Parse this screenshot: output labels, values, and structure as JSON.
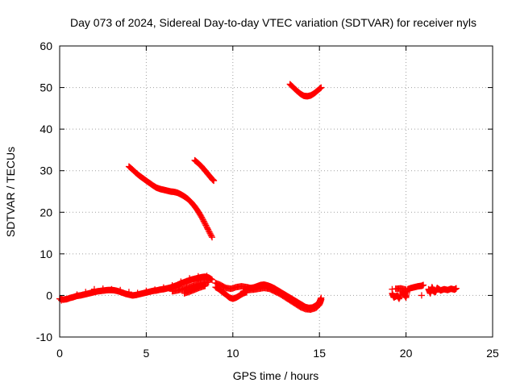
{
  "chart_data": {
    "type": "scatter",
    "title": "Day 073 of 2024, Sidereal Day-to-day VTEC variation (SDTVAR) for receiver nyls",
    "xlabel": "GPS time / hours",
    "ylabel": "SDTVAR / TECUs",
    "xlim": [
      0,
      25
    ],
    "ylim": [
      -10,
      60
    ],
    "x_ticks": [
      "0",
      "5",
      "10",
      "15",
      "20",
      "25"
    ],
    "y_ticks": [
      "-10",
      "0",
      "10",
      "20",
      "30",
      "40",
      "50",
      "60"
    ],
    "grid": true,
    "marker": "plus",
    "color": "#ff0000",
    "series": [
      {
        "points": [
          [
            0.0,
            -0.8
          ],
          [
            0.2,
            -1.0
          ],
          [
            0.4,
            -0.9
          ],
          [
            0.6,
            -0.6
          ],
          [
            0.8,
            -0.4
          ],
          [
            1.0,
            -0.1
          ],
          [
            1.2,
            0.0
          ],
          [
            1.4,
            0.2
          ],
          [
            1.6,
            0.4
          ],
          [
            1.8,
            0.6
          ],
          [
            2.0,
            0.8
          ],
          [
            2.2,
            1.0
          ],
          [
            2.4,
            1.1
          ],
          [
            2.6,
            1.2
          ],
          [
            2.8,
            1.3
          ],
          [
            3.0,
            1.3
          ],
          [
            3.2,
            1.2
          ],
          [
            3.4,
            1.0
          ],
          [
            3.6,
            0.7
          ],
          [
            3.8,
            0.4
          ],
          [
            4.0,
            0.2
          ],
          [
            4.2,
            0.0
          ],
          [
            4.4,
            0.1
          ],
          [
            4.6,
            0.3
          ],
          [
            4.8,
            0.5
          ],
          [
            5.0,
            0.7
          ],
          [
            5.2,
            0.9
          ],
          [
            5.4,
            1.1
          ],
          [
            5.6,
            1.2
          ],
          [
            5.8,
            1.4
          ],
          [
            6.0,
            1.5
          ],
          [
            6.2,
            1.7
          ],
          [
            6.4,
            1.9
          ],
          [
            6.6,
            2.2
          ],
          [
            6.8,
            2.5
          ],
          [
            7.0,
            2.9
          ],
          [
            7.2,
            3.2
          ],
          [
            7.4,
            3.5
          ],
          [
            7.6,
            3.8
          ],
          [
            7.8,
            4.0
          ],
          [
            8.0,
            4.2
          ],
          [
            8.2,
            4.4
          ],
          [
            8.4,
            4.5
          ],
          [
            8.6,
            4.3
          ],
          [
            8.8,
            3.8
          ]
        ]
      },
      {
        "points": [
          [
            0.1,
            -1.2
          ],
          [
            0.5,
            -0.8
          ],
          [
            1.0,
            0.2
          ],
          [
            1.5,
            0.8
          ],
          [
            2.0,
            1.5
          ],
          [
            2.5,
            1.6
          ],
          [
            3.0,
            1.5
          ],
          [
            3.5,
            1.3
          ],
          [
            4.0,
            0.8
          ],
          [
            4.5,
            0.6
          ],
          [
            5.0,
            1.1
          ],
          [
            5.5,
            1.4
          ],
          [
            6.0,
            1.9
          ],
          [
            6.5,
            2.4
          ],
          [
            7.0,
            3.3
          ],
          [
            7.5,
            4.1
          ],
          [
            8.0,
            4.6
          ],
          [
            8.5,
            4.7
          ]
        ]
      },
      {
        "points": [
          [
            6.5,
            1.0
          ],
          [
            6.8,
            1.2
          ],
          [
            7.1,
            1.5
          ],
          [
            7.4,
            1.9
          ],
          [
            7.7,
            2.3
          ],
          [
            8.0,
            2.7
          ],
          [
            8.3,
            3.0
          ],
          [
            8.6,
            3.2
          ],
          [
            7.2,
            0.5
          ],
          [
            7.5,
            0.9
          ],
          [
            7.8,
            1.4
          ],
          [
            8.1,
            1.9
          ],
          [
            8.4,
            2.3
          ]
        ]
      },
      {
        "points": [
          [
            9.0,
            2.0
          ],
          [
            9.2,
            1.5
          ],
          [
            9.4,
            0.8
          ],
          [
            9.6,
            0.2
          ],
          [
            9.8,
            -0.5
          ],
          [
            10.0,
            -0.8
          ],
          [
            10.2,
            -0.5
          ],
          [
            10.4,
            0.0
          ],
          [
            10.6,
            0.5
          ],
          [
            10.8,
            0.8
          ],
          [
            9.0,
            3.0
          ],
          [
            9.3,
            2.5
          ],
          [
            9.6,
            1.8
          ],
          [
            9.9,
            1.6
          ],
          [
            10.2,
            2.0
          ],
          [
            10.5,
            2.2
          ],
          [
            10.8,
            2.0
          ],
          [
            11.0,
            1.8
          ],
          [
            11.2,
            1.9
          ],
          [
            11.4,
            2.2
          ],
          [
            11.6,
            2.5
          ],
          [
            11.8,
            2.6
          ],
          [
            12.0,
            2.4
          ],
          [
            12.2,
            2.1
          ],
          [
            12.4,
            1.7
          ],
          [
            12.6,
            1.2
          ],
          [
            12.8,
            0.7
          ],
          [
            13.0,
            0.2
          ],
          [
            13.2,
            -0.3
          ],
          [
            13.4,
            -0.8
          ],
          [
            13.6,
            -1.3
          ],
          [
            13.8,
            -1.8
          ],
          [
            14.0,
            -2.3
          ],
          [
            14.2,
            -2.8
          ],
          [
            14.4,
            -3.0
          ],
          [
            14.6,
            -2.9
          ],
          [
            14.8,
            -2.4
          ],
          [
            15.0,
            -1.6
          ],
          [
            15.1,
            -0.6
          ],
          [
            10.6,
            1.0
          ],
          [
            10.9,
            1.3
          ],
          [
            11.2,
            1.4
          ],
          [
            11.5,
            1.6
          ],
          [
            11.8,
            1.8
          ],
          [
            12.1,
            1.6
          ],
          [
            12.4,
            1.0
          ],
          [
            12.7,
            0.4
          ],
          [
            13.0,
            -0.4
          ],
          [
            13.3,
            -1.2
          ],
          [
            13.6,
            -2.0
          ],
          [
            13.9,
            -2.8
          ],
          [
            14.2,
            -3.3
          ],
          [
            14.5,
            -3.4
          ],
          [
            14.8,
            -3.0
          ],
          [
            15.0,
            -2.2
          ],
          [
            15.1,
            -1.0
          ]
        ]
      },
      {
        "points": [
          [
            4.0,
            31.0
          ],
          [
            4.2,
            30.3
          ],
          [
            4.4,
            29.5
          ],
          [
            4.6,
            28.8
          ],
          [
            4.8,
            28.2
          ],
          [
            5.0,
            27.6
          ],
          [
            5.2,
            27.0
          ],
          [
            5.4,
            26.4
          ],
          [
            5.6,
            25.9
          ],
          [
            5.8,
            25.6
          ],
          [
            6.0,
            25.4
          ],
          [
            6.2,
            25.2
          ],
          [
            6.4,
            25.0
          ],
          [
            6.6,
            24.9
          ],
          [
            6.8,
            24.7
          ],
          [
            7.0,
            24.3
          ],
          [
            7.2,
            23.8
          ],
          [
            7.4,
            23.2
          ],
          [
            7.6,
            22.4
          ],
          [
            7.8,
            21.4
          ],
          [
            8.0,
            20.2
          ],
          [
            8.2,
            18.8
          ],
          [
            8.4,
            17.2
          ],
          [
            8.6,
            15.6
          ],
          [
            8.8,
            14.0
          ]
        ]
      },
      {
        "points": [
          [
            7.8,
            32.5
          ],
          [
            8.0,
            31.8
          ],
          [
            8.2,
            31.0
          ],
          [
            8.4,
            30.0
          ],
          [
            8.6,
            29.0
          ],
          [
            8.8,
            28.0
          ],
          [
            8.9,
            27.6
          ]
        ]
      },
      {
        "points": [
          [
            13.3,
            50.8
          ],
          [
            13.5,
            50.0
          ],
          [
            13.7,
            49.2
          ],
          [
            13.9,
            48.5
          ],
          [
            14.1,
            48.0
          ],
          [
            14.3,
            47.9
          ],
          [
            14.5,
            48.1
          ],
          [
            14.7,
            48.6
          ],
          [
            14.9,
            49.3
          ],
          [
            15.1,
            50.0
          ]
        ]
      },
      {
        "points": [
          [
            19.2,
            1.5
          ],
          [
            19.2,
            0.5
          ],
          [
            19.3,
            -0.5
          ],
          [
            19.5,
            0.0
          ],
          [
            19.6,
            -0.8
          ],
          [
            19.8,
            1.0
          ],
          [
            19.9,
            0.2
          ],
          [
            20.0,
            -0.5
          ],
          [
            20.1,
            1.5
          ],
          [
            20.3,
            1.8
          ],
          [
            20.5,
            2.0
          ],
          [
            20.7,
            2.2
          ],
          [
            20.9,
            2.3
          ],
          [
            21.0,
            2.5
          ],
          [
            19.4,
            1.6
          ],
          [
            19.7,
            1.7
          ],
          [
            20.0,
            1.4
          ]
        ]
      },
      {
        "points": [
          [
            20.9,
            0.0
          ]
        ]
      },
      {
        "points": [
          [
            21.3,
            1.5
          ],
          [
            21.4,
            0.5
          ],
          [
            21.5,
            2.0
          ],
          [
            21.6,
            1.0
          ],
          [
            21.7,
            0.8
          ],
          [
            21.8,
            1.8
          ],
          [
            22.0,
            1.2
          ],
          [
            22.2,
            1.5
          ],
          [
            22.4,
            1.3
          ],
          [
            22.6,
            1.6
          ],
          [
            22.8,
            1.4
          ],
          [
            22.9,
            1.7
          ]
        ]
      }
    ]
  }
}
